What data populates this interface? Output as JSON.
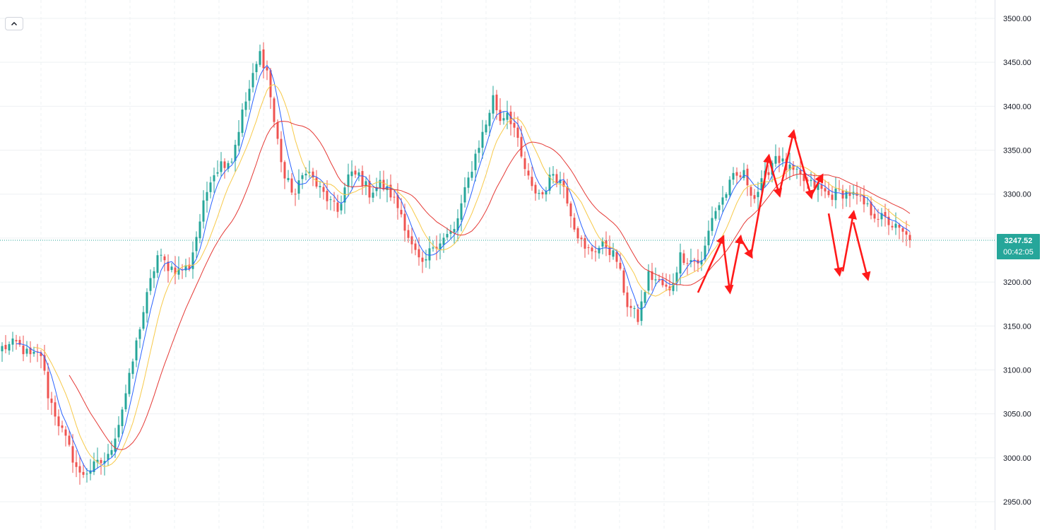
{
  "ui": {
    "collapse_icon": "chevron-up-icon",
    "last_price_label": "3247.52",
    "countdown": "00:42:05"
  },
  "colors": {
    "up": "#26a69a",
    "down": "#ef5350",
    "ma_fast": "#2962ff",
    "ma_mid": "#f7c948",
    "ma_slow": "#e53935",
    "annotation": "#ff1a1a",
    "price_badge": "#26a69a",
    "grid": "#eef0f3"
  },
  "chart_data": {
    "type": "candlestick",
    "yaxis_side": "right",
    "ylim": [
      2933,
      3518
    ],
    "yticks": [
      2950,
      3000,
      3050,
      3100,
      3150,
      3200,
      3250,
      3300,
      3350,
      3400,
      3450,
      3500
    ],
    "ytick_labels": [
      "2950.00",
      "3000.00",
      "3050.00",
      "3100.00",
      "3150.00",
      "3200.00",
      "3250.00",
      "3300.00",
      "3350.00",
      "3400.00",
      "3450.00",
      "3500.00"
    ],
    "grid": true,
    "last_price": 3247.52,
    "candle_count": 258,
    "close_anchors": [
      [
        0,
        3125
      ],
      [
        4,
        3130
      ],
      [
        8,
        3115
      ],
      [
        11,
        3118
      ],
      [
        13,
        3072
      ],
      [
        16,
        3040
      ],
      [
        19,
        3010
      ],
      [
        22,
        2980
      ],
      [
        26,
        2990
      ],
      [
        30,
        3000
      ],
      [
        33,
        3040
      ],
      [
        36,
        3090
      ],
      [
        39,
        3150
      ],
      [
        42,
        3200
      ],
      [
        44,
        3230
      ],
      [
        47,
        3218
      ],
      [
        50,
        3213
      ],
      [
        53,
        3218
      ],
      [
        56,
        3270
      ],
      [
        59,
        3320
      ],
      [
        62,
        3335
      ],
      [
        65,
        3340
      ],
      [
        68,
        3392
      ],
      [
        71,
        3433
      ],
      [
        73,
        3460
      ],
      [
        75,
        3440
      ],
      [
        77,
        3382
      ],
      [
        80,
        3318
      ],
      [
        83,
        3300
      ],
      [
        86,
        3330
      ],
      [
        89,
        3310
      ],
      [
        92,
        3295
      ],
      [
        95,
        3280
      ],
      [
        98,
        3320
      ],
      [
        101,
        3322
      ],
      [
        104,
        3302
      ],
      [
        107,
        3312
      ],
      [
        110,
        3300
      ],
      [
        113,
        3278
      ],
      [
        116,
        3240
      ],
      [
        119,
        3216
      ],
      [
        122,
        3242
      ],
      [
        125,
        3250
      ],
      [
        128,
        3258
      ],
      [
        131,
        3302
      ],
      [
        134,
        3345
      ],
      [
        137,
        3380
      ],
      [
        139,
        3410
      ],
      [
        141,
        3385
      ],
      [
        143,
        3395
      ],
      [
        145,
        3375
      ],
      [
        147,
        3340
      ],
      [
        150,
        3305
      ],
      [
        153,
        3300
      ],
      [
        156,
        3325
      ],
      [
        159,
        3310
      ],
      [
        162,
        3265
      ],
      [
        165,
        3235
      ],
      [
        168,
        3238
      ],
      [
        171,
        3242
      ],
      [
        174,
        3225
      ],
      [
        177,
        3175
      ],
      [
        180,
        3158
      ],
      [
        183,
        3208
      ],
      [
        186,
        3200
      ],
      [
        189,
        3188
      ],
      [
        192,
        3230
      ],
      [
        195,
        3225
      ],
      [
        198,
        3222
      ],
      [
        201,
        3275
      ],
      [
        204,
        3295
      ],
      [
        207,
        3318
      ],
      [
        210,
        3322
      ],
      [
        213,
        3296
      ],
      [
        216,
        3320
      ],
      [
        219,
        3345
      ],
      [
        222,
        3330
      ],
      [
        225,
        3322
      ],
      [
        228,
        3312
      ],
      [
        231,
        3308
      ],
      [
        234,
        3298
      ],
      [
        237,
        3302
      ],
      [
        240,
        3301
      ],
      [
        243,
        3292
      ],
      [
        246,
        3280
      ],
      [
        248,
        3275
      ],
      [
        251,
        3268
      ],
      [
        254,
        3258
      ],
      [
        257,
        3247.52
      ]
    ],
    "series": [
      {
        "name": "",
        "period": 5,
        "color": "#2962ff"
      },
      {
        "name": "",
        "period": 10,
        "color": "#f7c948"
      },
      {
        "name": "",
        "period": 20,
        "color": "#e53935"
      }
    ],
    "annotations": [
      {
        "type": "arrow",
        "from": [
          3,
          3188
        ],
        "to": [
          10,
          3250
        ],
        "beyond_data": false
      },
      {
        "type": "arrow",
        "from": [
          10,
          3250
        ],
        "to": [
          12,
          3190
        ],
        "beyond_data": false
      },
      {
        "type": "arrow",
        "from": [
          12,
          3190
        ],
        "to": [
          15,
          3250
        ],
        "beyond_data": false
      },
      {
        "type": "arrow",
        "from": [
          15,
          3250
        ],
        "to": [
          18,
          3230
        ],
        "beyond_data": false
      },
      {
        "type": "arrow",
        "from": [
          18,
          3230
        ],
        "to": [
          23,
          3342
        ],
        "beyond_data": false
      },
      {
        "type": "arrow",
        "from": [
          23,
          3342
        ],
        "to": [
          26,
          3300
        ],
        "beyond_data": false
      },
      {
        "type": "arrow",
        "from": [
          26,
          3300
        ],
        "to": [
          30,
          3370
        ],
        "beyond_data": false
      },
      {
        "type": "arrow",
        "from": [
          30,
          3370
        ],
        "to": [
          35,
          3298
        ],
        "beyond_data": false
      },
      {
        "type": "arrow",
        "from": [
          35,
          3298
        ],
        "to": [
          38,
          3320
        ],
        "beyond_data": false
      },
      {
        "type": "arrow",
        "from": [
          40,
          3278
        ],
        "to": [
          43,
          3210
        ],
        "beyond_data": true
      },
      {
        "type": "arrow",
        "from": [
          44,
          3212
        ],
        "to": [
          47,
          3278
        ],
        "beyond_data": true
      },
      {
        "type": "arrow",
        "from": [
          47,
          3268
        ],
        "to": [
          51,
          3205
        ],
        "beyond_data": true
      }
    ]
  }
}
